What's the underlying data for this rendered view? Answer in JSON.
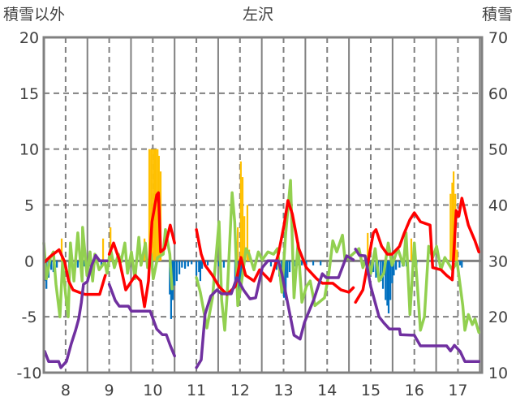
{
  "chart_data": {
    "type": "line",
    "title": "左沢",
    "ylabel_left": "積雪以外",
    "ylabel_right": "積雪",
    "xlim": [
      7.5,
      17.55
    ],
    "ylim_left": [
      -10,
      20
    ],
    "ylim_right": [
      10,
      70
    ],
    "x_ticks": [
      8,
      9,
      10,
      11,
      12,
      13,
      14,
      15,
      16,
      17
    ],
    "y_ticks_left": [
      -10,
      -5,
      0,
      5,
      10,
      15,
      20
    ],
    "y_ticks_right": [
      10,
      20,
      30,
      40,
      50,
      60,
      70
    ],
    "grid": true,
    "colors": {
      "red": "#ff0000",
      "green": "#92d050",
      "purple": "#7030a0",
      "orange": "#ffc000",
      "blue": "#0070c0"
    },
    "bars_orange": [
      [
        7.91,
        2
      ],
      [
        8.86,
        2
      ],
      [
        9.03,
        3
      ],
      [
        9.81,
        2
      ],
      [
        9.92,
        10
      ],
      [
        9.96,
        10
      ],
      [
        10.0,
        10
      ],
      [
        10.04,
        10
      ],
      [
        10.07,
        10
      ],
      [
        10.11,
        10
      ],
      [
        10.14,
        9.4
      ],
      [
        10.18,
        8
      ],
      [
        11.95,
        3
      ],
      [
        12.02,
        8.9
      ],
      [
        12.06,
        7.5
      ],
      [
        12.1,
        4
      ],
      [
        12.17,
        5
      ],
      [
        12.21,
        1
      ],
      [
        14.93,
        2.5
      ],
      [
        15.93,
        2
      ],
      [
        16.83,
        6
      ],
      [
        16.87,
        7
      ],
      [
        16.9,
        8
      ],
      [
        16.94,
        6
      ],
      [
        16.98,
        1
      ]
    ],
    "bars_blue": [
      [
        7.52,
        -1.8
      ],
      [
        7.56,
        -2.5
      ],
      [
        7.61,
        -1.5
      ],
      [
        7.67,
        -0.8
      ],
      [
        7.72,
        -1
      ],
      [
        7.8,
        -0.6
      ],
      [
        7.95,
        -0.7
      ],
      [
        8.08,
        -0.6
      ],
      [
        8.28,
        -0.6
      ],
      [
        8.43,
        -0.5
      ],
      [
        8.54,
        -0.5
      ],
      [
        8.82,
        -0.5
      ],
      [
        10.39,
        -3
      ],
      [
        10.42,
        -5.2
      ],
      [
        10.46,
        -3.5
      ],
      [
        10.5,
        -2.2
      ],
      [
        10.55,
        -1.8
      ],
      [
        10.61,
        -1.2
      ],
      [
        10.67,
        -0.6
      ],
      [
        10.74,
        -0.7
      ],
      [
        10.81,
        -0.5
      ],
      [
        10.89,
        -0.3
      ],
      [
        11.0,
        -1.3
      ],
      [
        11.06,
        -1
      ],
      [
        11.09,
        -1.8
      ],
      [
        11.13,
        -0.7
      ],
      [
        11.2,
        -0.5
      ],
      [
        11.26,
        -0.4
      ],
      [
        11.52,
        -0.5
      ],
      [
        11.63,
        -0.6
      ],
      [
        11.89,
        -2
      ],
      [
        11.93,
        -1.8
      ],
      [
        11.97,
        -3
      ],
      [
        12.0,
        -3.3
      ],
      [
        12.04,
        -2.5
      ],
      [
        12.08,
        -0.8
      ],
      [
        12.71,
        -0.5
      ],
      [
        12.81,
        -0.5
      ],
      [
        12.84,
        -0.8
      ],
      [
        12.9,
        -1.4
      ],
      [
        12.96,
        -1.7
      ],
      [
        13.01,
        -3.3
      ],
      [
        13.05,
        -3.5
      ],
      [
        13.09,
        -1.5
      ],
      [
        13.14,
        -1
      ],
      [
        13.24,
        -0.5
      ],
      [
        13.33,
        -0.4
      ],
      [
        13.42,
        -0.4
      ],
      [
        13.52,
        -0.4
      ],
      [
        13.68,
        -0.4
      ],
      [
        13.85,
        -0.4
      ],
      [
        14.97,
        -0.5
      ],
      [
        15.06,
        -1
      ],
      [
        15.12,
        -1.5
      ],
      [
        15.17,
        -1.5
      ],
      [
        15.23,
        -1.8
      ],
      [
        15.28,
        -2.5
      ],
      [
        15.34,
        -3.5
      ],
      [
        15.38,
        -4
      ],
      [
        15.41,
        -4.7
      ],
      [
        15.45,
        -3.5
      ],
      [
        15.49,
        -2
      ],
      [
        15.53,
        -1.3
      ],
      [
        15.58,
        -0.8
      ],
      [
        15.66,
        -0.6
      ],
      [
        15.73,
        -0.5
      ],
      [
        15.82,
        -0.5
      ],
      [
        16.05,
        -0.5
      ],
      [
        17.05,
        -0.4
      ],
      [
        17.09,
        -0.6
      ]
    ],
    "series_green": [
      [
        7.5,
        1.6
      ],
      [
        7.56,
        -1.6
      ],
      [
        7.65,
        0.3
      ],
      [
        7.72,
        0.8
      ],
      [
        7.78,
        -2.1
      ],
      [
        7.87,
        -5
      ],
      [
        7.93,
        -0.1
      ],
      [
        8.0,
        -3
      ],
      [
        8.06,
        -5
      ],
      [
        8.11,
        1.6
      ],
      [
        8.19,
        -1.8
      ],
      [
        8.28,
        2.5
      ],
      [
        8.38,
        -1.8
      ],
      [
        8.39,
        3
      ],
      [
        8.49,
        -1.3
      ],
      [
        8.56,
        0.8
      ],
      [
        8.62,
        -1.8
      ],
      [
        8.67,
        0.6
      ],
      [
        8.77,
        -0.8
      ],
      [
        8.9,
        -0.1
      ],
      [
        8.95,
        -1.1
      ],
      [
        9.03,
        1.1
      ],
      [
        9.12,
        -0.6
      ],
      [
        9.21,
        0.6
      ],
      [
        9.27,
        -0.1
      ],
      [
        9.36,
        1.6
      ],
      [
        9.42,
        -1.1
      ],
      [
        9.51,
        0.8
      ],
      [
        9.59,
        -1.6
      ],
      [
        9.68,
        2.1
      ],
      [
        9.73,
        -0.4
      ],
      [
        9.83,
        1.6
      ],
      [
        9.88,
        -0.6
      ],
      [
        9.96,
        0.6
      ],
      [
        10.01,
        -1.6
      ],
      [
        10.11,
        0.3
      ],
      [
        10.24,
        0.6
      ],
      [
        10.29,
        2.8
      ],
      [
        10.39,
        0.6
      ],
      [
        10.44,
        -2.5
      ],
      null,
      [
        11.0,
        -1.5
      ],
      [
        11.09,
        -2.8
      ],
      [
        11.24,
        -6
      ],
      [
        11.37,
        -3.3
      ],
      [
        11.52,
        3.5
      ],
      [
        11.58,
        -3.5
      ],
      [
        11.65,
        -6.2
      ],
      [
        11.71,
        -2.8
      ],
      [
        11.82,
        6.1
      ],
      [
        11.88,
        3.5
      ],
      [
        11.95,
        -4
      ],
      [
        12.04,
        -1.8
      ],
      [
        12.14,
        1.1
      ],
      [
        12.21,
        0.6
      ],
      [
        12.32,
        -0.8
      ],
      [
        12.42,
        0.8
      ],
      [
        12.51,
        0.1
      ],
      [
        12.64,
        0.8
      ],
      [
        12.77,
        0.6
      ],
      [
        12.86,
        1.1
      ],
      [
        12.96,
        -2.8
      ],
      [
        13.05,
        2.5
      ],
      [
        13.16,
        7.2
      ],
      [
        13.24,
        -3.3
      ],
      [
        13.33,
        1.6
      ],
      [
        13.42,
        -3.7
      ],
      [
        13.52,
        -2.3
      ],
      [
        13.61,
        -1.8
      ],
      [
        13.72,
        -4
      ],
      [
        13.94,
        -3.3
      ],
      [
        14.04,
        -1.1
      ],
      [
        14.13,
        1.8
      ],
      [
        14.22,
        0.8
      ],
      [
        14.35,
        2.3
      ],
      [
        14.41,
        0.1
      ],
      [
        14.5,
        0.3
      ],
      [
        14.73,
        1.1
      ],
      [
        14.82,
        -0.6
      ],
      [
        14.91,
        0.3
      ],
      [
        15.0,
        -1.1
      ],
      [
        15.1,
        1.1
      ],
      [
        15.19,
        -1.8
      ],
      [
        15.3,
        -1.1
      ],
      [
        15.4,
        1.6
      ],
      [
        15.49,
        -0.4
      ],
      [
        15.62,
        1.1
      ],
      [
        15.75,
        -0.4
      ],
      [
        15.81,
        2.5
      ],
      [
        15.9,
        -4.8
      ],
      [
        16.0,
        1.6
      ],
      [
        16.08,
        -2.8
      ],
      [
        16.14,
        -6.2
      ],
      [
        16.23,
        -5
      ],
      [
        16.33,
        1.3
      ],
      [
        16.42,
        0.3
      ],
      [
        16.51,
        1.3
      ],
      [
        16.61,
        -0.8
      ],
      [
        16.7,
        0.3
      ],
      [
        16.87,
        -0.8
      ],
      [
        16.98,
        -0.1
      ],
      [
        17.11,
        -4
      ],
      [
        17.16,
        -6.2
      ],
      [
        17.24,
        -4.8
      ],
      [
        17.33,
        -5.7
      ],
      [
        17.39,
        -5.2
      ],
      [
        17.48,
        -6.4
      ]
    ],
    "series_red": [
      [
        7.52,
        -0.1
      ],
      [
        7.65,
        0.4
      ],
      [
        7.85,
        1.0
      ],
      [
        7.98,
        -0.1
      ],
      [
        8.07,
        -1.8
      ],
      [
        8.17,
        -2.6
      ],
      [
        8.3,
        -2.8
      ],
      [
        8.45,
        -3
      ],
      [
        8.78,
        -3
      ],
      [
        8.91,
        -1.3
      ],
      null,
      [
        9.0,
        0.6
      ],
      [
        9.1,
        1.6
      ],
      [
        9.23,
        0.1
      ],
      [
        9.38,
        -2.6
      ],
      [
        9.6,
        -1.3
      ],
      [
        9.72,
        -1.8
      ],
      [
        9.81,
        -4.1
      ],
      [
        9.9,
        -1.8
      ],
      [
        9.98,
        3.5
      ],
      [
        10.09,
        5.9
      ],
      [
        10.13,
        6.1
      ],
      [
        10.18,
        0.8
      ],
      [
        10.27,
        1.1
      ],
      [
        10.4,
        3.2
      ],
      [
        10.5,
        1.6
      ],
      null,
      [
        11.0,
        2.8
      ],
      [
        11.11,
        0.6
      ],
      [
        11.2,
        -0.4
      ],
      [
        11.37,
        -1.3
      ],
      [
        11.52,
        -2.3
      ],
      [
        11.7,
        -3
      ],
      [
        11.89,
        -2.3
      ],
      [
        12.02,
        0.3
      ],
      [
        12.13,
        -1.3
      ],
      [
        12.32,
        -1.8
      ],
      [
        12.45,
        -0.8
      ],
      [
        12.7,
        -1.8
      ],
      [
        12.88,
        0.6
      ],
      [
        13.01,
        3.2
      ],
      [
        13.1,
        5.4
      ],
      [
        13.2,
        4.2
      ],
      [
        13.35,
        1.1
      ],
      [
        13.52,
        -0.6
      ],
      [
        13.76,
        -1.6
      ],
      [
        13.89,
        -2
      ],
      [
        14.13,
        -2
      ],
      [
        14.32,
        -2.6
      ],
      [
        14.5,
        -2.8
      ],
      [
        14.6,
        -2.4
      ],
      null,
      [
        14.65,
        -3.7
      ],
      [
        14.82,
        -2.6
      ],
      [
        14.97,
        0.6
      ],
      [
        15.06,
        2.5
      ],
      [
        15.12,
        2.8
      ],
      [
        15.25,
        1.3
      ],
      [
        15.38,
        0.6
      ],
      [
        15.49,
        0.6
      ],
      [
        15.66,
        1.3
      ],
      [
        15.77,
        2.5
      ],
      [
        15.9,
        3.7
      ],
      [
        16.0,
        4.3
      ],
      [
        16.14,
        3.5
      ],
      [
        16.36,
        3.2
      ],
      [
        16.42,
        -0.6
      ],
      [
        16.61,
        -0.8
      ],
      [
        16.74,
        -1.3
      ],
      [
        16.87,
        -1.7
      ],
      [
        16.96,
        4.5
      ],
      [
        17.02,
        4
      ],
      [
        17.09,
        5.6
      ],
      [
        17.24,
        3.2
      ],
      [
        17.39,
        1.8
      ],
      [
        17.48,
        0.8
      ]
    ],
    "series_purple_right_axis": [
      [
        7.52,
        13.8
      ],
      [
        7.61,
        12
      ],
      [
        7.84,
        12
      ],
      [
        7.89,
        10.9
      ],
      [
        8.02,
        12
      ],
      [
        8.13,
        15.2
      ],
      [
        8.23,
        17.6
      ],
      [
        8.3,
        19.6
      ],
      [
        8.36,
        22.5
      ],
      [
        8.41,
        25.8
      ],
      [
        8.5,
        26.3
      ],
      [
        8.6,
        29.2
      ],
      [
        8.69,
        31
      ],
      [
        8.78,
        30
      ],
      [
        8.95,
        30
      ],
      null,
      [
        9.0,
        25.8
      ],
      [
        9.14,
        22.9
      ],
      [
        9.23,
        21.9
      ],
      [
        9.44,
        21.9
      ],
      [
        9.51,
        21
      ],
      [
        9.94,
        21
      ],
      [
        10.09,
        17.8
      ],
      [
        10.22,
        16.8
      ],
      [
        10.31,
        16.8
      ],
      [
        10.4,
        14.9
      ],
      [
        10.5,
        13
      ],
      null,
      [
        11.0,
        10.9
      ],
      [
        11.11,
        12.3
      ],
      [
        11.2,
        20.5
      ],
      [
        11.33,
        23.7
      ],
      [
        11.47,
        24.8
      ],
      [
        11.58,
        24.1
      ],
      [
        11.8,
        24.1
      ],
      [
        11.93,
        27
      ],
      [
        12.08,
        24.8
      ],
      [
        12.23,
        23.2
      ],
      [
        12.36,
        23.4
      ],
      [
        12.45,
        26.6
      ],
      [
        12.51,
        28.8
      ],
      [
        12.64,
        30
      ],
      [
        12.88,
        30
      ],
      [
        12.96,
        27.7
      ],
      [
        13.07,
        23.4
      ],
      [
        13.24,
        16.7
      ],
      [
        13.38,
        16
      ],
      [
        13.48,
        19
      ],
      [
        13.7,
        23.2
      ],
      [
        13.89,
        27.7
      ],
      [
        13.98,
        27
      ],
      [
        14.26,
        27
      ],
      [
        14.45,
        30.9
      ],
      [
        14.6,
        30.2
      ],
      null,
      [
        14.65,
        32.1
      ],
      [
        14.74,
        31
      ],
      [
        14.87,
        30.9
      ],
      [
        15.0,
        25.4
      ],
      [
        15.19,
        20
      ],
      [
        15.3,
        18.9
      ],
      [
        15.43,
        17.8
      ],
      [
        15.66,
        17.8
      ],
      [
        15.68,
        16.8
      ],
      [
        16.0,
        16.7
      ],
      [
        16.14,
        14.8
      ],
      [
        16.74,
        14.8
      ],
      [
        16.83,
        13.9
      ],
      [
        16.92,
        14.9
      ],
      [
        17.05,
        13.8
      ],
      [
        17.16,
        12
      ],
      [
        17.48,
        12
      ]
    ]
  }
}
